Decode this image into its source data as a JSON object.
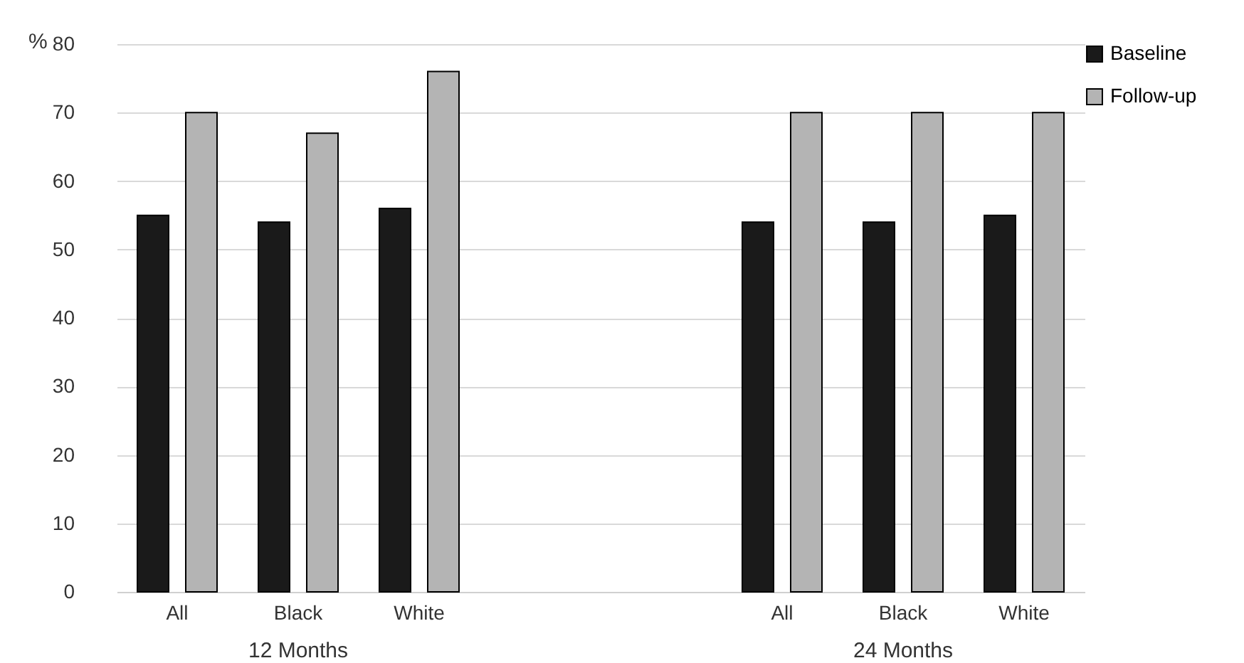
{
  "chart_data": {
    "type": "bar",
    "ylabel": "%",
    "categories": [
      "All",
      "Black",
      "White",
      null,
      null,
      "All",
      "Black",
      "White"
    ],
    "series": [
      {
        "name": "Baseline",
        "color": "#1a1a1a",
        "values": [
          55,
          54,
          56,
          null,
          null,
          54,
          54,
          55
        ]
      },
      {
        "name": "Follow-up",
        "color": "#b4b4b4",
        "values": [
          70,
          67,
          76,
          null,
          null,
          70,
          70,
          70
        ]
      }
    ],
    "ylim": [
      0,
      80
    ],
    "yticks": [
      0,
      10,
      20,
      30,
      40,
      50,
      60,
      70,
      80
    ],
    "grid": "y",
    "legend": "top right",
    "annotations": [
      "12 Months",
      "24 Months"
    ]
  }
}
